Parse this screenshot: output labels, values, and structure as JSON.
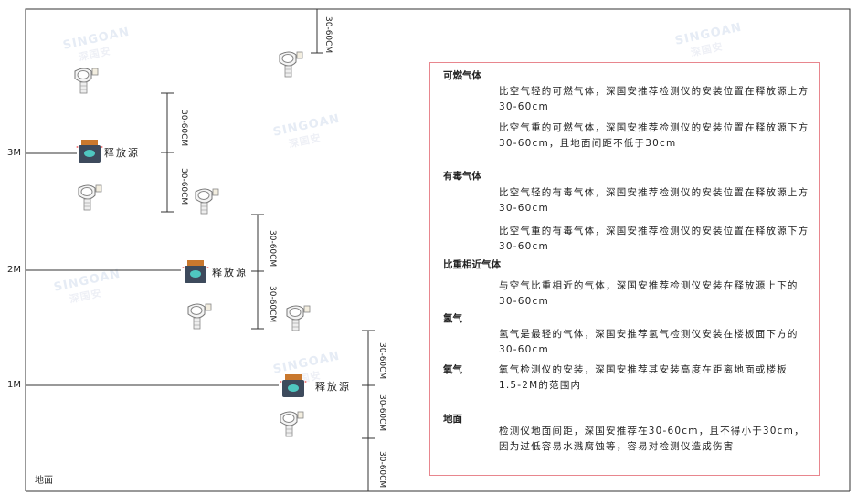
{
  "watermark": {
    "brand": "SINGOAN",
    "chinese": "深国安"
  },
  "levels": [
    {
      "label": "3M"
    },
    {
      "label": "2M"
    },
    {
      "label": "1M"
    }
  ],
  "floor_label": "地面",
  "sources": [
    {
      "label": "释放源"
    },
    {
      "label": "释放源"
    },
    {
      "label": "释放源"
    }
  ],
  "dimension_label": "30-60CM",
  "colors": {
    "frame": "#333333",
    "box_border": "#e8868e",
    "source_body": "#3d4a5c",
    "source_cap": "#c9782e",
    "source_icon": "#4fc7c0"
  },
  "info": {
    "sections": [
      {
        "title": "可燃气体",
        "paragraphs": [
          "比空气轻的可燃气体，深国安推荐检测仪的安装位置在释放源上方30-60cm",
          "比空气重的可燃气体，深国安推荐检测仪的安装位置在释放源下方30-60cm，且地面间距不低于30cm"
        ]
      },
      {
        "title": "有毒气体",
        "paragraphs": [
          "比空气轻的有毒气体，深国安推荐检测仪的安装位置在释放源上方30-60cm",
          "比空气重的有毒气体，深国安推荐检测仪的安装位置在释放源下方30-60cm"
        ]
      },
      {
        "title": "比重相近气体",
        "paragraphs": [
          "与空气比重相近的气体，深国安推荐检测仪安装在释放源上下的30-60cm"
        ]
      },
      {
        "title": "氢气",
        "paragraphs": [
          "氢气是最轻的气体，深国安推荐氢气检测仪安装在楼板面下方的30-60cm"
        ]
      },
      {
        "title": "氧气",
        "paragraphs": [
          "氧气检测仪的安装，深国安推荐其安装高度在距离地面或楼板1.5-2M的范围内"
        ]
      },
      {
        "title": "地面",
        "paragraphs": [
          "检测仪地面间距，深国安推荐在30-60cm，且不得小于30cm，因为过低容易水溅腐蚀等，容易对检测仪造成伤害"
        ]
      }
    ]
  }
}
